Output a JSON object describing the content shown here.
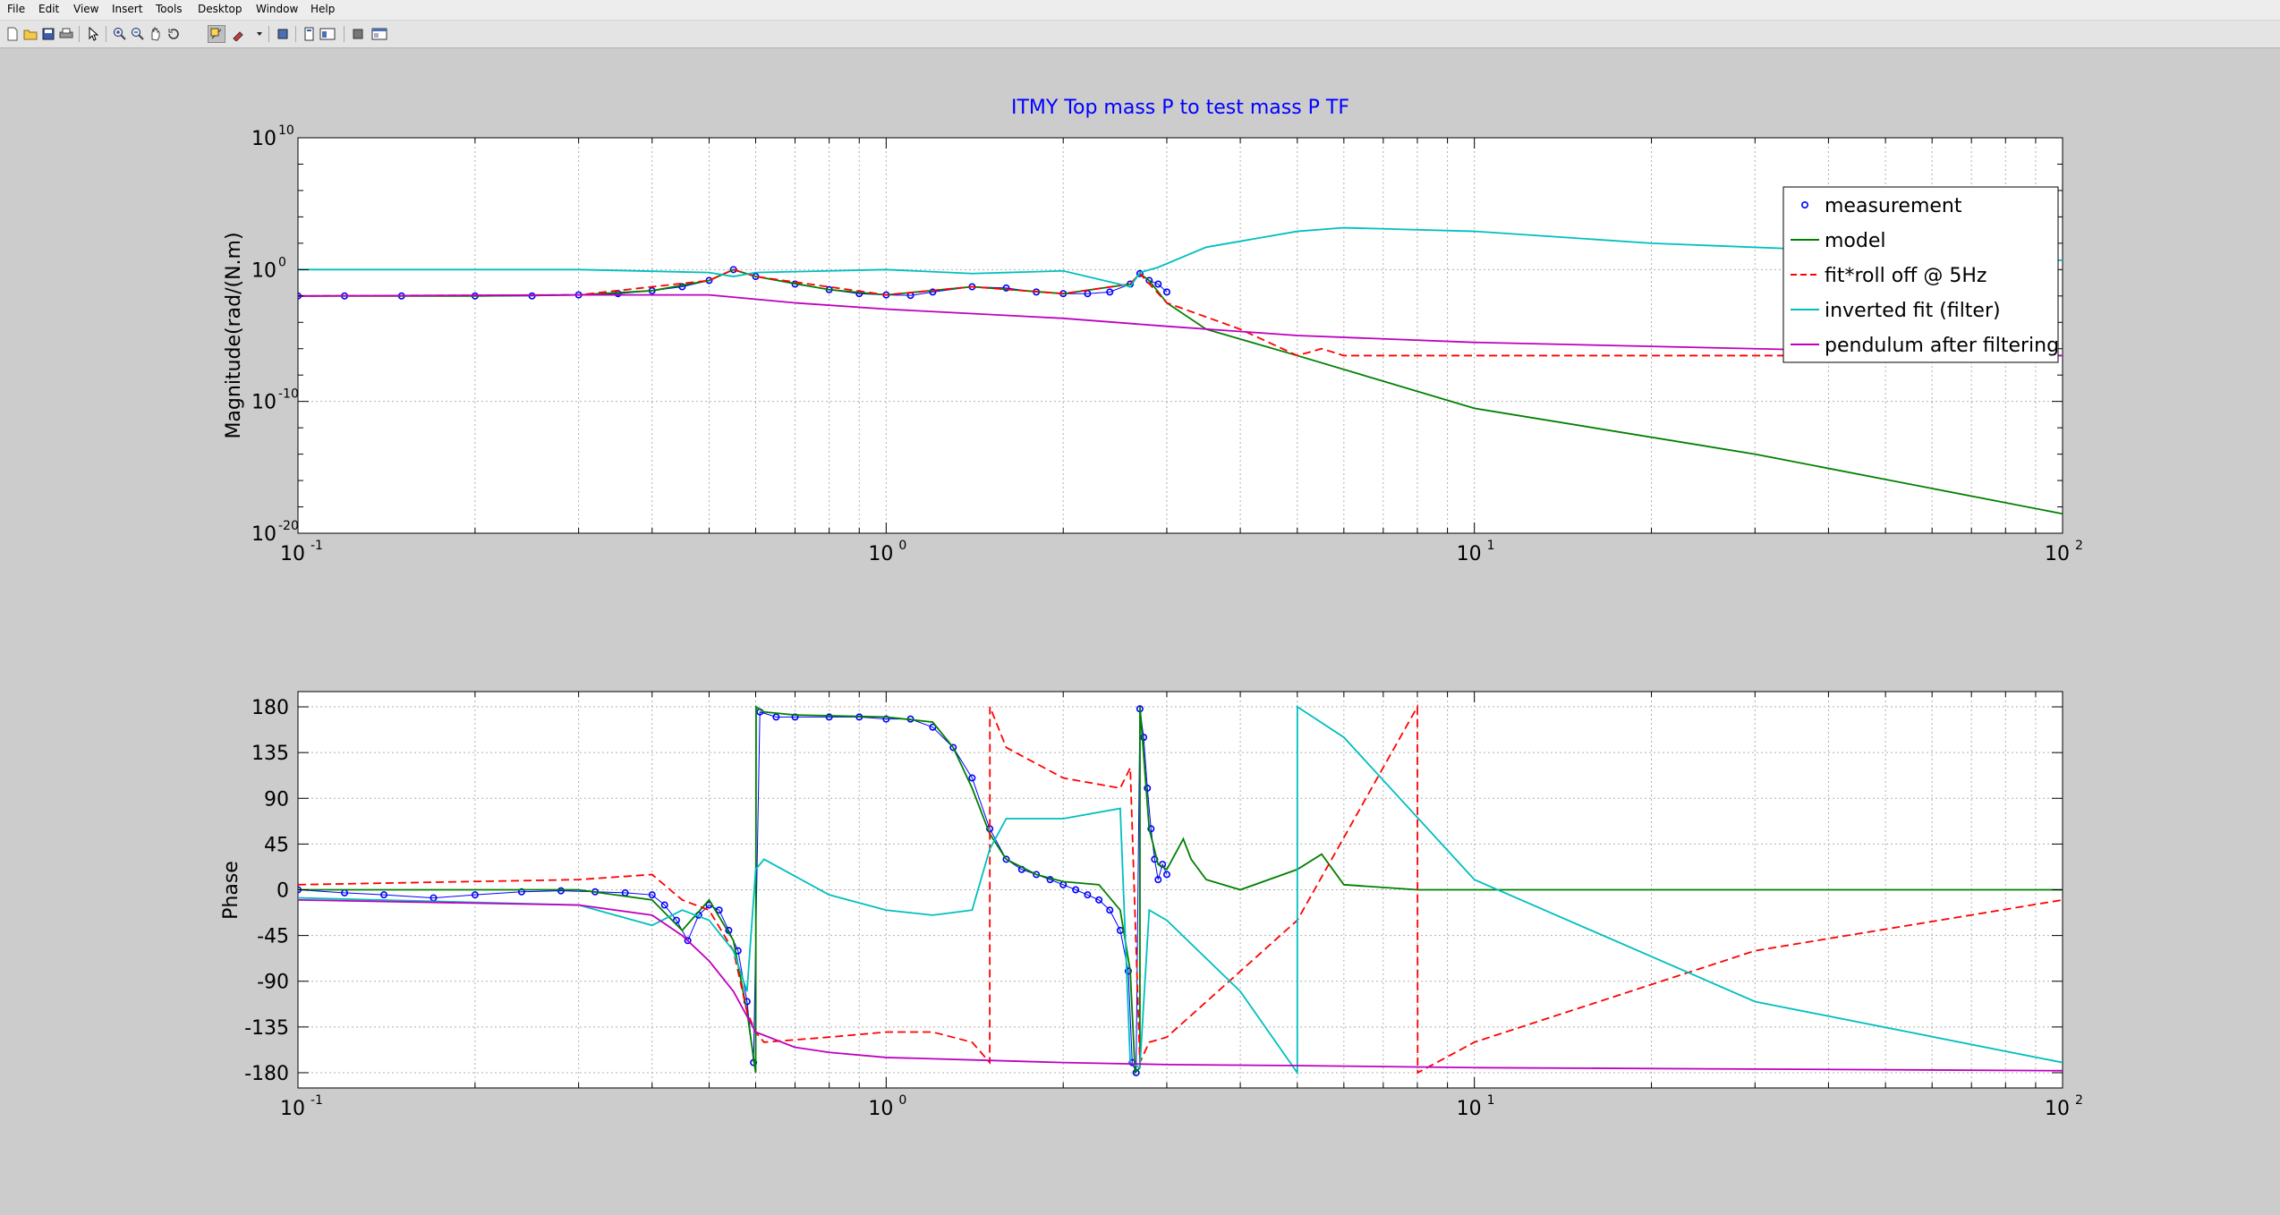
{
  "menu": [
    "File",
    "Edit",
    "View",
    "Insert",
    "Tools",
    "Desktop",
    "Window",
    "Help"
  ],
  "toolbar_icons": [
    "new-figure-icon",
    "open-file-icon",
    "save-icon",
    "print-icon",
    "edit-plot-arrow-icon",
    "zoom-in-icon",
    "zoom-out-icon",
    "pan-hand-icon",
    "rotate-3d-icon",
    "data-cursor-icon",
    "brush-icon",
    "link-plot-icon",
    "insert-colorbar-icon",
    "insert-legend-icon",
    "hide-plot-tools-icon",
    "show-plot-tools-icon"
  ],
  "colors": {
    "measurement": "#0000ff",
    "model": "#008000",
    "fit": "#ff0000",
    "inverted": "#00bfbf",
    "pendulum": "#bf00bf",
    "title": "#0000ff",
    "figure_bg": "#cccccc"
  },
  "chart_data": [
    {
      "type": "line",
      "title": "ITMY Top mass P to test mass P TF",
      "ylabel": "Magnitude(rad/(N.m)",
      "xlabel": "",
      "xscale": "log",
      "yscale": "log",
      "xlim": [
        0.1,
        100
      ],
      "ylim": [
        1e-20,
        10000000000.0
      ],
      "grid": true,
      "legend_position": "top-right",
      "x_tick_labels": [
        {
          "base": "10",
          "exp": "-1"
        },
        {
          "base": "10",
          "exp": "0"
        },
        {
          "base": "10",
          "exp": "1"
        },
        {
          "base": "10",
          "exp": "2"
        }
      ],
      "y_tick_labels": [
        {
          "base": "10",
          "exp": "-20"
        },
        {
          "base": "10",
          "exp": "-10"
        },
        {
          "base": "10",
          "exp": "0"
        },
        {
          "base": "10",
          "exp": "10"
        }
      ],
      "legend": [
        {
          "label": "measurement",
          "style": "marker"
        },
        {
          "label": "model",
          "style": "solid"
        },
        {
          "label": "fit*roll off @ 5Hz",
          "style": "dashed"
        },
        {
          "label": "inverted fit (filter)",
          "style": "solid"
        },
        {
          "label": "pendulum after filtering",
          "style": "solid"
        }
      ],
      "series": [
        {
          "name": "measurement",
          "style": "marker",
          "x": [
            0.1,
            0.12,
            0.15,
            0.2,
            0.25,
            0.3,
            0.35,
            0.4,
            0.45,
            0.5,
            0.55,
            0.6,
            0.7,
            0.8,
            0.9,
            1.0,
            1.1,
            1.2,
            1.4,
            1.6,
            1.8,
            2.0,
            2.2,
            2.4,
            2.6,
            2.7,
            2.8,
            2.9,
            3.0
          ],
          "y": [
            0.01,
            0.01,
            0.01,
            0.01,
            0.01,
            0.012,
            0.015,
            0.025,
            0.05,
            0.15,
            1.0,
            0.3,
            0.08,
            0.03,
            0.015,
            0.012,
            0.011,
            0.02,
            0.05,
            0.04,
            0.02,
            0.015,
            0.015,
            0.02,
            0.08,
            0.5,
            0.15,
            0.08,
            0.02
          ]
        },
        {
          "name": "model",
          "style": "solid",
          "x": [
            0.1,
            0.2,
            0.3,
            0.4,
            0.5,
            0.55,
            0.6,
            0.8,
            1.0,
            1.4,
            2.0,
            2.6,
            2.7,
            2.8,
            3.0,
            3.5,
            5,
            10,
            30,
            100
          ],
          "y": [
            0.01,
            0.01,
            0.012,
            0.025,
            0.15,
            1.0,
            0.3,
            0.03,
            0.012,
            0.05,
            0.015,
            0.08,
            0.5,
            0.15,
            0.003,
            3e-05,
            3e-07,
            3e-11,
            1e-14,
            3e-19
          ]
        },
        {
          "name": "fit*roll off @ 5Hz",
          "style": "dashed",
          "x": [
            0.1,
            0.3,
            0.5,
            0.55,
            0.6,
            1.0,
            1.4,
            2.0,
            2.6,
            2.7,
            3.0,
            4,
            5,
            5.5,
            6,
            10,
            30,
            100
          ],
          "y": [
            0.01,
            0.012,
            0.15,
            1.0,
            0.3,
            0.012,
            0.05,
            0.015,
            0.08,
            0.5,
            0.003,
            3e-05,
            3e-07,
            1e-06,
            3e-07,
            3e-07,
            3e-07,
            3e-07
          ]
        },
        {
          "name": "inverted fit (filter)",
          "style": "solid",
          "x": [
            0.1,
            0.3,
            0.5,
            0.55,
            0.6,
            1.0,
            1.4,
            2.0,
            2.6,
            2.7,
            2.9,
            3.5,
            5,
            6,
            10,
            20,
            50,
            100
          ],
          "y": [
            1,
            1,
            0.6,
            0.3,
            0.6,
            1,
            0.5,
            0.8,
            0.05,
            0.6,
            1.5,
            50,
            800,
            1500,
            800,
            100,
            20,
            5
          ]
        },
        {
          "name": "pendulum after filtering",
          "style": "solid",
          "x": [
            0.1,
            0.3,
            0.5,
            0.7,
            1,
            2,
            3,
            5,
            10,
            30,
            100
          ],
          "y": [
            0.01,
            0.012,
            0.012,
            0.003,
            0.001,
            0.0002,
            5e-05,
            1e-05,
            3e-06,
            1e-06,
            3e-07
          ]
        }
      ]
    },
    {
      "type": "line",
      "title": "",
      "ylabel": "Phase",
      "xlabel": "",
      "xscale": "log",
      "xlim": [
        0.1,
        100
      ],
      "ylim": [
        -195,
        195
      ],
      "grid": true,
      "x_tick_labels": [
        {
          "base": "10",
          "exp": "-1"
        },
        {
          "base": "10",
          "exp": "0"
        },
        {
          "base": "10",
          "exp": "1"
        },
        {
          "base": "10",
          "exp": "2"
        }
      ],
      "y_ticks": [
        180,
        135,
        90,
        45,
        0,
        -45,
        -90,
        -135,
        -180
      ],
      "series": [
        {
          "name": "measurement",
          "style": "marker",
          "x": [
            0.1,
            0.12,
            0.14,
            0.17,
            0.2,
            0.24,
            0.28,
            0.32,
            0.36,
            0.4,
            0.42,
            0.44,
            0.46,
            0.48,
            0.5,
            0.52,
            0.54,
            0.56,
            0.58,
            0.595,
            0.61,
            0.65,
            0.7,
            0.8,
            0.9,
            1.0,
            1.1,
            1.2,
            1.3,
            1.4,
            1.5,
            1.6,
            1.7,
            1.8,
            1.9,
            2.0,
            2.1,
            2.2,
            2.3,
            2.4,
            2.5,
            2.58,
            2.62,
            2.66,
            2.7,
            2.74,
            2.78,
            2.82,
            2.86,
            2.9,
            2.95,
            3.0
          ],
          "y": [
            0,
            -3,
            -5,
            -8,
            -5,
            -2,
            -1,
            -2,
            -3,
            -5,
            -15,
            -30,
            -50,
            -25,
            -15,
            -20,
            -40,
            -60,
            -110,
            -170,
            175,
            170,
            170,
            170,
            170,
            168,
            168,
            160,
            140,
            110,
            60,
            30,
            20,
            15,
            10,
            5,
            0,
            -5,
            -10,
            -20,
            -40,
            -80,
            -170,
            -180,
            178,
            150,
            100,
            60,
            30,
            10,
            25,
            15
          ]
        },
        {
          "name": "model",
          "style": "solid",
          "x": [
            0.1,
            0.3,
            0.4,
            0.45,
            0.5,
            0.55,
            0.58,
            0.6,
            0.601,
            0.62,
            0.7,
            1.0,
            1.2,
            1.3,
            1.4,
            1.5,
            1.6,
            1.8,
            2.0,
            2.3,
            2.5,
            2.6,
            2.65,
            2.7,
            2.701,
            2.75,
            2.8,
            2.9,
            3.0,
            3.2,
            3.3,
            3.5,
            4,
            5,
            5.5,
            6,
            8,
            10,
            100
          ],
          "y": [
            0,
            0,
            -10,
            -40,
            -10,
            -50,
            -120,
            -180,
            180,
            175,
            172,
            170,
            165,
            140,
            100,
            55,
            30,
            15,
            8,
            5,
            -20,
            -80,
            -180,
            -175,
            180,
            120,
            60,
            25,
            20,
            50,
            30,
            10,
            0,
            20,
            35,
            5,
            0,
            0,
            0
          ]
        },
        {
          "name": "fit*roll off @ 5Hz",
          "style": "dashed",
          "x": [
            0.1,
            0.3,
            0.4,
            0.45,
            0.5,
            0.55,
            0.58,
            0.6,
            0.62,
            0.8,
            1.0,
            1.2,
            1.4,
            1.5,
            1.501,
            1.6,
            2.0,
            2.5,
            2.6,
            2.7,
            2.8,
            3.0,
            5,
            8,
            8.01,
            10,
            30,
            100
          ],
          "y": [
            5,
            10,
            15,
            -10,
            -20,
            -60,
            -120,
            -140,
            -150,
            -145,
            -140,
            -140,
            -150,
            -170,
            180,
            140,
            110,
            100,
            120,
            -170,
            -150,
            -145,
            -30,
            180,
            -180,
            -150,
            -60,
            -10
          ]
        },
        {
          "name": "inverted fit (filter)",
          "style": "solid",
          "x": [
            0.1,
            0.3,
            0.4,
            0.45,
            0.5,
            0.55,
            0.58,
            0.6,
            0.62,
            0.8,
            1.0,
            1.2,
            1.4,
            1.5,
            1.6,
            2.0,
            2.5,
            2.6,
            2.7,
            2.8,
            3.0,
            4,
            5,
            5.001,
            6,
            10,
            30,
            100
          ],
          "y": [
            -8,
            -15,
            -35,
            -20,
            -30,
            -60,
            -100,
            20,
            30,
            -5,
            -20,
            -25,
            -20,
            40,
            70,
            70,
            80,
            -170,
            -175,
            -20,
            -30,
            -100,
            -180,
            180,
            150,
            10,
            -110,
            -170
          ]
        },
        {
          "name": "pendulum after filtering",
          "style": "solid",
          "x": [
            0.1,
            0.3,
            0.4,
            0.45,
            0.5,
            0.55,
            0.6,
            0.7,
            0.8,
            1.0,
            2.0,
            3.0,
            5,
            10,
            100
          ],
          "y": [
            -10,
            -15,
            -25,
            -45,
            -70,
            -100,
            -140,
            -155,
            -160,
            -165,
            -170,
            -172,
            -173,
            -175,
            -178
          ]
        }
      ]
    }
  ]
}
